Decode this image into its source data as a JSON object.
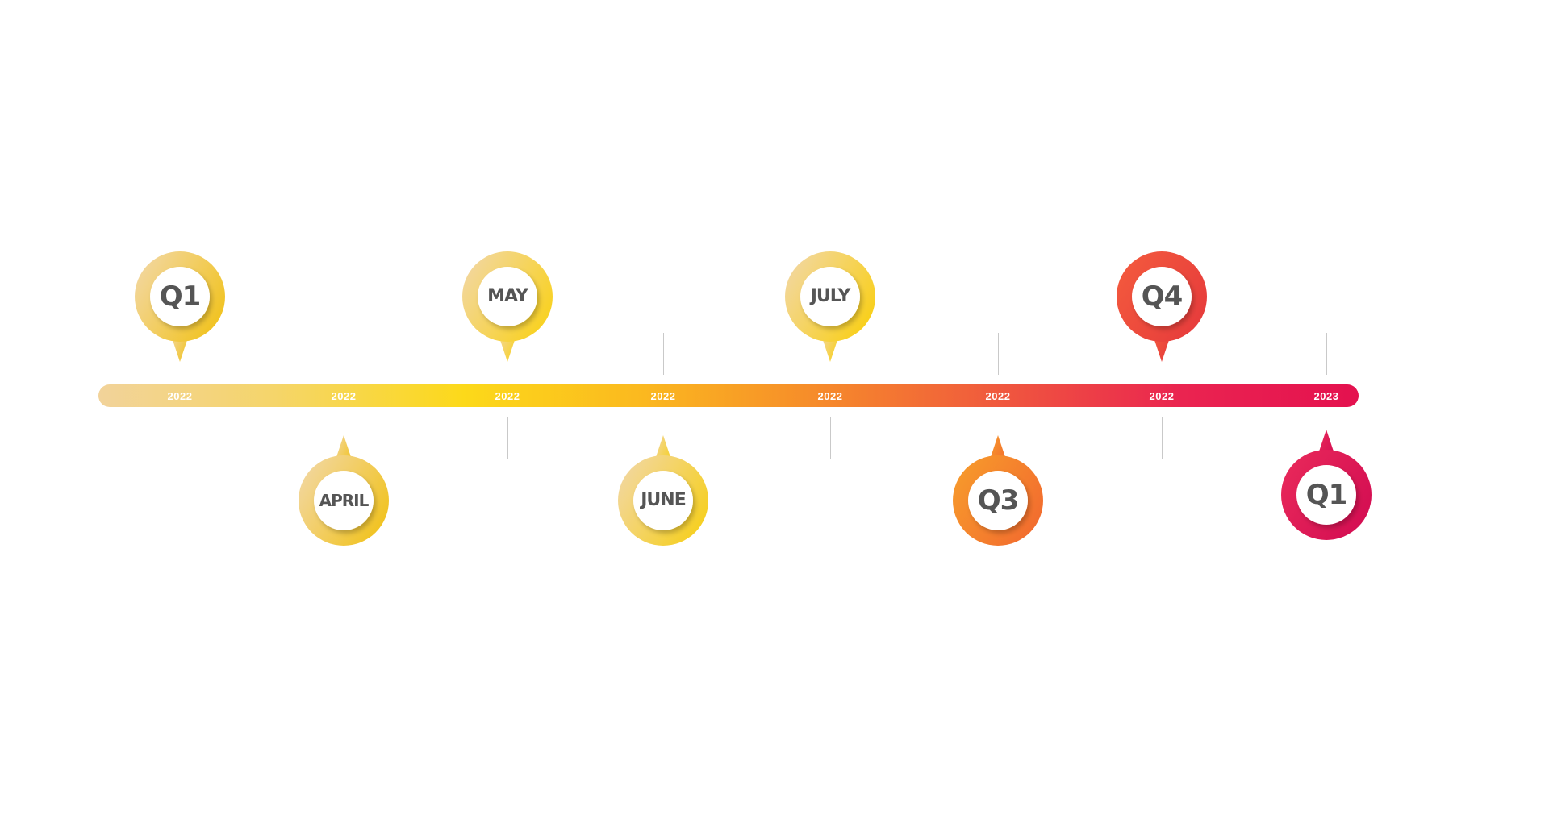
{
  "timeline": {
    "colors": {
      "bar_gradient": [
        "#f2d39a",
        "#f5d56a",
        "#fcd91a",
        "#fbb91f",
        "#f68b2a",
        "#f05a3d",
        "#ea2450",
        "#e4114f"
      ],
      "label_text": "#555555",
      "year_text": "#ffffff",
      "connector": "#c9c9c9"
    },
    "milestones": [
      {
        "label": "Q1",
        "year": "2022",
        "side": "top",
        "color_light": "#f2d7a0",
        "color_dark": "#f1c21a"
      },
      {
        "label": "APRIL",
        "year": "2022",
        "side": "bottom",
        "color_light": "#f2d7a0",
        "color_dark": "#f1c21a"
      },
      {
        "label": "MAY",
        "year": "2022",
        "side": "top",
        "color_light": "#f2d7a0",
        "color_dark": "#f9d11a"
      },
      {
        "label": "JUNE",
        "year": "2022",
        "side": "bottom",
        "color_light": "#f2d7a0",
        "color_dark": "#f6cf1a"
      },
      {
        "label": "JULY",
        "year": "2022",
        "side": "top",
        "color_light": "#f2d7a0",
        "color_dark": "#f9cf13"
      },
      {
        "label": "Q3",
        "year": "2022",
        "side": "bottom",
        "color_light": "#f79a2c",
        "color_dark": "#f26a2e"
      },
      {
        "label": "Q4",
        "year": "2022",
        "side": "top",
        "color_light": "#f3593d",
        "color_dark": "#e63b3c"
      },
      {
        "label": "Q1",
        "year": "2023",
        "side": "bottom",
        "color_light": "#e8285a",
        "color_dark": "#d30d52"
      }
    ]
  }
}
